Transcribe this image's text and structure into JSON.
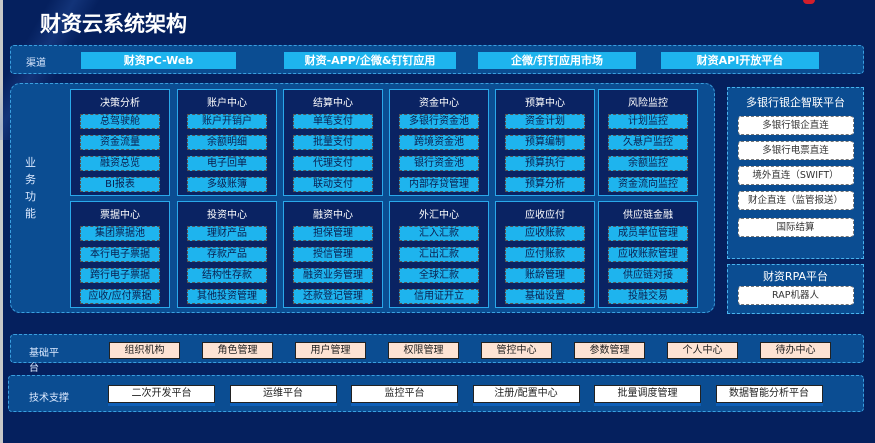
{
  "title": "财资云系统架构",
  "channels": {
    "label": "渠道",
    "items": [
      "财资PC-Web",
      "财资-APP/企微&钉钉应用",
      "企微/钉钉应用市场",
      "财资API开放平台"
    ]
  },
  "business": {
    "label": "业务功能",
    "modules": [
      {
        "title": "决策分析",
        "items": [
          "总驾驶舱",
          "资金流量",
          "融资总览",
          "BI报表"
        ]
      },
      {
        "title": "账户中心",
        "items": [
          "账户开销户",
          "余额明细",
          "电子回单",
          "多级账簿"
        ]
      },
      {
        "title": "结算中心",
        "items": [
          "单笔支付",
          "批量支付",
          "代理支付",
          "联动支付"
        ]
      },
      {
        "title": "资金中心",
        "items": [
          "多银行资金池",
          "跨境资金池",
          "银行资金池",
          "内部存贷管理"
        ]
      },
      {
        "title": "预算中心",
        "items": [
          "资金计划",
          "预算编制",
          "预算执行",
          "预算分析"
        ]
      },
      {
        "title": "风险监控",
        "items": [
          "计划监控",
          "久悬户监控",
          "余额监控",
          "资金流向监控"
        ]
      },
      {
        "title": "票据中心",
        "items": [
          "集团票据池",
          "本行电子票据",
          "跨行电子票据",
          "应收/应付票据"
        ]
      },
      {
        "title": "投资中心",
        "items": [
          "理财产品",
          "存款产品",
          "结构性存款",
          "其他投资管理"
        ]
      },
      {
        "title": "融资中心",
        "items": [
          "担保管理",
          "授信管理",
          "融资业务管理",
          "还款登记管理"
        ]
      },
      {
        "title": "外汇中心",
        "items": [
          "汇入汇款",
          "汇出汇款",
          "全球汇款",
          "信用证开立"
        ]
      },
      {
        "title": "应收应付",
        "items": [
          "应收账款",
          "应付账款",
          "账龄管理",
          "基础设置"
        ]
      },
      {
        "title": "供应链金融",
        "items": [
          "成员单位管理",
          "应收账款管理",
          "供应链对接",
          "投融交易"
        ]
      }
    ]
  },
  "bank": {
    "title": "多银行银企智联平台",
    "items": [
      "多银行银企直连",
      "多银行电票直连",
      "境外直连（SWIFT）",
      "财企直连（监管报送）",
      "国际结算"
    ]
  },
  "rpa": {
    "title": "财资RPA平台",
    "items": [
      "RAP机器人"
    ]
  },
  "base": {
    "label": "基础平台",
    "items": [
      "组织机构",
      "角色管理",
      "用户管理",
      "权限管理",
      "管控中心",
      "参数管理",
      "个人中心",
      "待办中心"
    ]
  },
  "tech": {
    "label": "技术支撑",
    "items": [
      "二次开发平台",
      "运维平台",
      "监控平台",
      "注册/配置中心",
      "批量调度管理",
      "数据智能分析平台"
    ]
  }
}
